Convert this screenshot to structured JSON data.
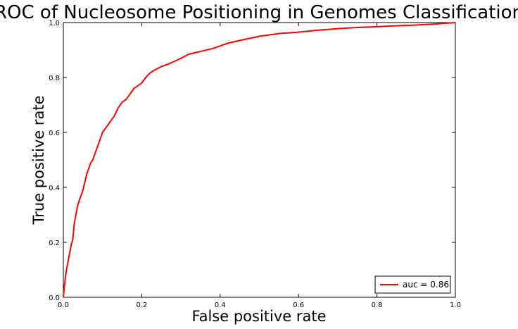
{
  "chart_data": {
    "type": "line",
    "title": "ROC of Nucleosome Positioning in Genomes Classification",
    "xlabel": "False positive rate",
    "ylabel": "True positive rate",
    "xlim": [
      0,
      1
    ],
    "ylim": [
      0,
      1
    ],
    "xticks": [
      "0.0",
      "0.2",
      "0.4",
      "0.6",
      "0.8",
      "1.0"
    ],
    "yticks": [
      "0.0",
      "0.2",
      "0.4",
      "0.6",
      "0.8",
      "1.0"
    ],
    "grid": false,
    "legend_position": "lower-right",
    "series": [
      {
        "name": "auc = 0.86",
        "color": "#ff0000",
        "x": [
          0,
          0.002,
          0.005,
          0.008,
          0.012,
          0.016,
          0.02,
          0.024,
          0.028,
          0.032,
          0.036,
          0.04,
          0.045,
          0.05,
          0.055,
          0.06,
          0.065,
          0.07,
          0.075,
          0.08,
          0.085,
          0.09,
          0.095,
          0.1,
          0.105,
          0.11,
          0.12,
          0.13,
          0.14,
          0.15,
          0.16,
          0.17,
          0.18,
          0.19,
          0.2,
          0.21,
          0.22,
          0.23,
          0.25,
          0.27,
          0.3,
          0.32,
          0.35,
          0.38,
          0.4,
          0.42,
          0.45,
          0.5,
          0.55,
          0.6,
          0.65,
          0.7,
          0.75,
          0.8,
          0.85,
          0.9,
          0.95,
          1.0
        ],
        "y": [
          0,
          0.03,
          0.07,
          0.1,
          0.13,
          0.16,
          0.19,
          0.21,
          0.27,
          0.3,
          0.33,
          0.35,
          0.37,
          0.39,
          0.42,
          0.45,
          0.47,
          0.49,
          0.5,
          0.52,
          0.54,
          0.56,
          0.58,
          0.6,
          0.61,
          0.62,
          0.64,
          0.66,
          0.69,
          0.71,
          0.72,
          0.74,
          0.76,
          0.77,
          0.78,
          0.8,
          0.815,
          0.825,
          0.84,
          0.85,
          0.87,
          0.885,
          0.895,
          0.905,
          0.915,
          0.925,
          0.935,
          0.95,
          0.96,
          0.965,
          0.972,
          0.978,
          0.982,
          0.985,
          0.988,
          0.991,
          0.995,
          1.0
        ]
      }
    ]
  }
}
